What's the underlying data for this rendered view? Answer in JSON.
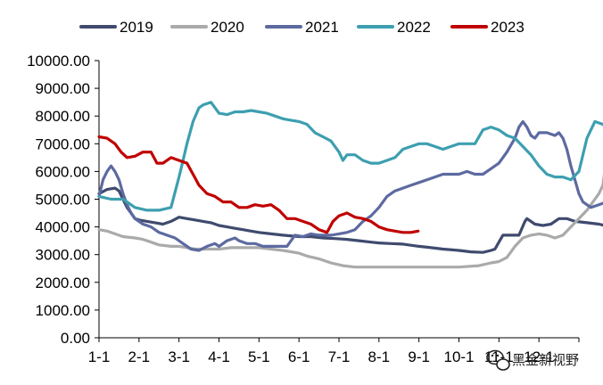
{
  "chart_data": {
    "type": "line",
    "title": "",
    "xlabel": "",
    "ylabel": "",
    "ylim": [
      0,
      10000
    ],
    "y_ticks": [
      "0.00",
      "1000.00",
      "2000.00",
      "3000.00",
      "4000.00",
      "5000.00",
      "6000.00",
      "7000.00",
      "8000.00",
      "9000.00",
      "10000.00"
    ],
    "x_ticks": [
      "1-1",
      "2-1",
      "3-1",
      "4-1",
      "5-1",
      "6-1",
      "7-1",
      "8-1",
      "9-1",
      "10-1",
      "11-1",
      "12-1"
    ],
    "x_unit": "month index (0 = Jan 1, 12 = end of Dec)",
    "grid": false,
    "legend_position": "top",
    "series": [
      {
        "name": "2019",
        "color": "#3f4a6e",
        "points": [
          [
            0,
            5200
          ],
          [
            0.2,
            5350
          ],
          [
            0.4,
            5400
          ],
          [
            0.5,
            5300
          ],
          [
            0.6,
            5000
          ],
          [
            0.7,
            4700
          ],
          [
            0.8,
            4500
          ],
          [
            0.9,
            4300
          ],
          [
            1.0,
            4250
          ],
          [
            1.2,
            4200
          ],
          [
            1.4,
            4150
          ],
          [
            1.6,
            4100
          ],
          [
            1.8,
            4200
          ],
          [
            2.0,
            4350
          ],
          [
            2.2,
            4300
          ],
          [
            2.4,
            4250
          ],
          [
            2.6,
            4200
          ],
          [
            2.8,
            4150
          ],
          [
            3.0,
            4050
          ],
          [
            3.2,
            4000
          ],
          [
            3.4,
            3950
          ],
          [
            3.6,
            3900
          ],
          [
            3.8,
            3850
          ],
          [
            4.0,
            3800
          ],
          [
            4.3,
            3750
          ],
          [
            4.6,
            3700
          ],
          [
            5.0,
            3650
          ],
          [
            5.3,
            3650
          ],
          [
            5.6,
            3600
          ],
          [
            5.9,
            3580
          ],
          [
            6.2,
            3550
          ],
          [
            6.5,
            3500
          ],
          [
            6.8,
            3450
          ],
          [
            7.0,
            3420
          ],
          [
            7.3,
            3400
          ],
          [
            7.6,
            3380
          ],
          [
            8.0,
            3300
          ],
          [
            8.3,
            3250
          ],
          [
            8.6,
            3200
          ],
          [
            9.0,
            3150
          ],
          [
            9.3,
            3100
          ],
          [
            9.6,
            3080
          ],
          [
            9.8,
            3150
          ],
          [
            9.9,
            3200
          ],
          [
            10.0,
            3450
          ],
          [
            10.1,
            3700
          ],
          [
            10.3,
            3700
          ],
          [
            10.5,
            3700
          ],
          [
            10.65,
            4200
          ],
          [
            10.7,
            4300
          ],
          [
            10.9,
            4100
          ],
          [
            11.1,
            4050
          ],
          [
            11.3,
            4100
          ],
          [
            11.5,
            4300
          ],
          [
            11.7,
            4300
          ],
          [
            11.9,
            4200
          ],
          [
            12.2,
            4150
          ],
          [
            12.5,
            4100
          ],
          [
            12.8,
            4000
          ],
          [
            12.98,
            3900
          ]
        ]
      },
      {
        "name": "2020",
        "color": "#aaaaaa",
        "points": [
          [
            0,
            3900
          ],
          [
            0.2,
            3850
          ],
          [
            0.4,
            3750
          ],
          [
            0.6,
            3650
          ],
          [
            0.9,
            3600
          ],
          [
            1.1,
            3550
          ],
          [
            1.3,
            3450
          ],
          [
            1.5,
            3350
          ],
          [
            1.8,
            3300
          ],
          [
            2.0,
            3300
          ],
          [
            2.2,
            3250
          ],
          [
            2.4,
            3200
          ],
          [
            2.6,
            3200
          ],
          [
            2.8,
            3200
          ],
          [
            3.0,
            3200
          ],
          [
            3.3,
            3250
          ],
          [
            3.6,
            3250
          ],
          [
            4.0,
            3250
          ],
          [
            4.3,
            3200
          ],
          [
            4.6,
            3150
          ],
          [
            5.0,
            3050
          ],
          [
            5.2,
            2950
          ],
          [
            5.5,
            2850
          ],
          [
            5.8,
            2700
          ],
          [
            6.1,
            2600
          ],
          [
            6.4,
            2550
          ],
          [
            6.7,
            2550
          ],
          [
            7.0,
            2550
          ],
          [
            7.5,
            2550
          ],
          [
            8.0,
            2550
          ],
          [
            8.5,
            2550
          ],
          [
            9.0,
            2550
          ],
          [
            9.5,
            2600
          ],
          [
            9.8,
            2700
          ],
          [
            10.0,
            2750
          ],
          [
            10.2,
            2900
          ],
          [
            10.4,
            3300
          ],
          [
            10.6,
            3600
          ],
          [
            10.8,
            3700
          ],
          [
            11.0,
            3750
          ],
          [
            11.2,
            3700
          ],
          [
            11.4,
            3600
          ],
          [
            11.6,
            3700
          ],
          [
            11.8,
            4000
          ],
          [
            12.0,
            4300
          ],
          [
            12.2,
            4600
          ],
          [
            12.4,
            5000
          ],
          [
            12.5,
            5200
          ],
          [
            12.6,
            5500
          ],
          [
            12.7,
            6600
          ],
          [
            12.75,
            6500
          ],
          [
            12.8,
            5500
          ],
          [
            12.9,
            5300
          ],
          [
            12.98,
            5600
          ]
        ]
      },
      {
        "name": "2021",
        "color": "#5d6aa0",
        "points": [
          [
            0,
            5100
          ],
          [
            0.1,
            5700
          ],
          [
            0.2,
            6000
          ],
          [
            0.3,
            6200
          ],
          [
            0.4,
            6000
          ],
          [
            0.5,
            5700
          ],
          [
            0.6,
            5200
          ],
          [
            0.7,
            4800
          ],
          [
            0.8,
            4500
          ],
          [
            0.9,
            4300
          ],
          [
            1.0,
            4200
          ],
          [
            1.1,
            4100
          ],
          [
            1.2,
            4050
          ],
          [
            1.3,
            4000
          ],
          [
            1.4,
            3900
          ],
          [
            1.5,
            3800
          ],
          [
            1.7,
            3700
          ],
          [
            1.9,
            3600
          ],
          [
            2.1,
            3400
          ],
          [
            2.3,
            3200
          ],
          [
            2.5,
            3150
          ],
          [
            2.7,
            3300
          ],
          [
            2.9,
            3400
          ],
          [
            3.0,
            3300
          ],
          [
            3.2,
            3500
          ],
          [
            3.4,
            3600
          ],
          [
            3.5,
            3500
          ],
          [
            3.7,
            3400
          ],
          [
            3.9,
            3400
          ],
          [
            4.1,
            3300
          ],
          [
            4.3,
            3300
          ],
          [
            4.5,
            3300
          ],
          [
            4.7,
            3300
          ],
          [
            4.9,
            3700
          ],
          [
            5.1,
            3650
          ],
          [
            5.3,
            3750
          ],
          [
            5.5,
            3700
          ],
          [
            5.8,
            3700
          ],
          [
            6.0,
            3750
          ],
          [
            6.2,
            3800
          ],
          [
            6.4,
            3900
          ],
          [
            6.6,
            4200
          ],
          [
            6.8,
            4400
          ],
          [
            7.0,
            4700
          ],
          [
            7.2,
            5100
          ],
          [
            7.4,
            5300
          ],
          [
            7.6,
            5400
          ],
          [
            7.8,
            5500
          ],
          [
            8.0,
            5600
          ],
          [
            8.2,
            5700
          ],
          [
            8.4,
            5800
          ],
          [
            8.6,
            5900
          ],
          [
            8.8,
            5900
          ],
          [
            9.0,
            5900
          ],
          [
            9.2,
            6000
          ],
          [
            9.4,
            5900
          ],
          [
            9.6,
            5900
          ],
          [
            9.8,
            6100
          ],
          [
            10.0,
            6300
          ],
          [
            10.2,
            6700
          ],
          [
            10.4,
            7200
          ],
          [
            10.5,
            7600
          ],
          [
            10.6,
            7800
          ],
          [
            10.7,
            7600
          ],
          [
            10.8,
            7300
          ],
          [
            10.9,
            7200
          ],
          [
            11.0,
            7400
          ],
          [
            11.2,
            7400
          ],
          [
            11.4,
            7300
          ],
          [
            11.5,
            7400
          ],
          [
            11.6,
            7200
          ],
          [
            11.7,
            6800
          ],
          [
            11.8,
            6200
          ],
          [
            11.9,
            5700
          ],
          [
            12.0,
            5200
          ],
          [
            12.1,
            4900
          ],
          [
            12.3,
            4700
          ],
          [
            12.5,
            4800
          ],
          [
            12.7,
            4900
          ],
          [
            12.9,
            5000
          ],
          [
            12.98,
            5100
          ]
        ]
      },
      {
        "name": "2022",
        "color": "#3d9fb0",
        "points": [
          [
            0,
            5100
          ],
          [
            0.3,
            5000
          ],
          [
            0.6,
            5000
          ],
          [
            0.9,
            4700
          ],
          [
            1.2,
            4600
          ],
          [
            1.5,
            4600
          ],
          [
            1.8,
            4700
          ],
          [
            2.0,
            5800
          ],
          [
            2.1,
            6400
          ],
          [
            2.2,
            7000
          ],
          [
            2.35,
            7800
          ],
          [
            2.5,
            8300
          ],
          [
            2.6,
            8400
          ],
          [
            2.8,
            8500
          ],
          [
            3.0,
            8100
          ],
          [
            3.2,
            8050
          ],
          [
            3.4,
            8150
          ],
          [
            3.6,
            8150
          ],
          [
            3.8,
            8200
          ],
          [
            4.0,
            8150
          ],
          [
            4.2,
            8100
          ],
          [
            4.4,
            8000
          ],
          [
            4.6,
            7900
          ],
          [
            4.8,
            7850
          ],
          [
            5.0,
            7800
          ],
          [
            5.2,
            7700
          ],
          [
            5.4,
            7400
          ],
          [
            5.6,
            7250
          ],
          [
            5.8,
            7100
          ],
          [
            6.0,
            6700
          ],
          [
            6.1,
            6400
          ],
          [
            6.2,
            6600
          ],
          [
            6.4,
            6600
          ],
          [
            6.6,
            6400
          ],
          [
            6.8,
            6300
          ],
          [
            7.0,
            6300
          ],
          [
            7.2,
            6400
          ],
          [
            7.4,
            6500
          ],
          [
            7.6,
            6800
          ],
          [
            7.8,
            6900
          ],
          [
            8.0,
            7000
          ],
          [
            8.2,
            7000
          ],
          [
            8.4,
            6900
          ],
          [
            8.6,
            6800
          ],
          [
            8.8,
            6900
          ],
          [
            9.0,
            7000
          ],
          [
            9.2,
            7000
          ],
          [
            9.4,
            7000
          ],
          [
            9.6,
            7500
          ],
          [
            9.8,
            7600
          ],
          [
            10.0,
            7500
          ],
          [
            10.2,
            7300
          ],
          [
            10.4,
            7200
          ],
          [
            10.6,
            6900
          ],
          [
            10.8,
            6600
          ],
          [
            11.0,
            6200
          ],
          [
            11.2,
            5900
          ],
          [
            11.4,
            5800
          ],
          [
            11.6,
            5800
          ],
          [
            11.8,
            5700
          ],
          [
            12.0,
            6000
          ],
          [
            12.2,
            7200
          ],
          [
            12.4,
            7800
          ],
          [
            12.6,
            7700
          ],
          [
            12.8,
            7400
          ],
          [
            12.98,
            7200
          ]
        ]
      },
      {
        "name": "2023",
        "color": "#c00000",
        "points": [
          [
            0,
            7250
          ],
          [
            0.2,
            7200
          ],
          [
            0.4,
            7000
          ],
          [
            0.55,
            6700
          ],
          [
            0.7,
            6500
          ],
          [
            0.9,
            6550
          ],
          [
            1.1,
            6700
          ],
          [
            1.3,
            6700
          ],
          [
            1.45,
            6300
          ],
          [
            1.6,
            6300
          ],
          [
            1.8,
            6500
          ],
          [
            2.0,
            6400
          ],
          [
            2.2,
            6300
          ],
          [
            2.35,
            5900
          ],
          [
            2.5,
            5500
          ],
          [
            2.7,
            5200
          ],
          [
            2.9,
            5100
          ],
          [
            3.1,
            4900
          ],
          [
            3.3,
            4900
          ],
          [
            3.5,
            4700
          ],
          [
            3.7,
            4700
          ],
          [
            3.9,
            4800
          ],
          [
            4.1,
            4750
          ],
          [
            4.3,
            4800
          ],
          [
            4.5,
            4600
          ],
          [
            4.7,
            4300
          ],
          [
            4.9,
            4300
          ],
          [
            5.1,
            4200
          ],
          [
            5.3,
            4100
          ],
          [
            5.5,
            3900
          ],
          [
            5.7,
            3800
          ],
          [
            5.85,
            4200
          ],
          [
            6.0,
            4400
          ],
          [
            6.2,
            4500
          ],
          [
            6.4,
            4350
          ],
          [
            6.6,
            4300
          ],
          [
            6.8,
            4200
          ],
          [
            7.0,
            4000
          ],
          [
            7.2,
            3900
          ],
          [
            7.4,
            3850
          ],
          [
            7.6,
            3800
          ],
          [
            7.8,
            3800
          ],
          [
            7.98,
            3850
          ]
        ]
      }
    ]
  },
  "watermark": {
    "text": "黑金新视野",
    "icon": "wechat-icon"
  }
}
